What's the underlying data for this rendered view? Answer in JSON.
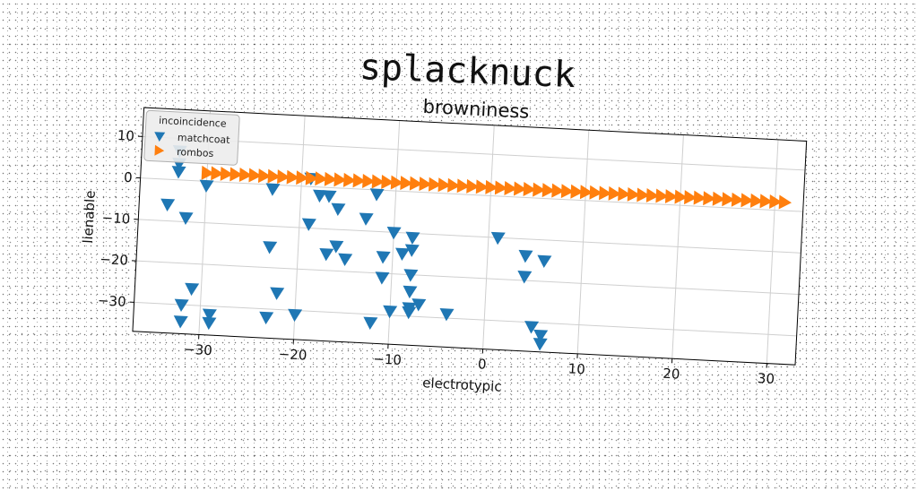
{
  "suptitle": "splacknuck",
  "chart_data": {
    "type": "scatter",
    "title": "browniness",
    "xlabel": "electrotypic",
    "ylabel": "lienable",
    "xlim": [
      -37,
      33
    ],
    "ylim": [
      -37,
      17
    ],
    "xticks": [
      -30,
      -20,
      -10,
      0,
      10,
      20,
      30
    ],
    "yticks": [
      10,
      0,
      -10,
      -20,
      -30
    ],
    "grid": true,
    "legend": {
      "title": "incoincidence",
      "position": "top-left"
    },
    "series": [
      {
        "name": "matchcoat",
        "color": "#1f77b4",
        "marker": "triangle-down",
        "points": [
          [
            -33,
            7
          ],
          [
            -33,
            4
          ],
          [
            -33,
            2
          ],
          [
            -30,
            -1
          ],
          [
            -34,
            -6
          ],
          [
            -32,
            -9
          ],
          [
            -31,
            -26
          ],
          [
            -32,
            -30
          ],
          [
            -32,
            -34
          ],
          [
            -29,
            -32
          ],
          [
            -29,
            -34
          ],
          [
            -23,
            -1
          ],
          [
            -23,
            -15
          ],
          [
            -22,
            -26
          ],
          [
            -23,
            -32
          ],
          [
            -19,
            2
          ],
          [
            -18,
            -2
          ],
          [
            -19,
            -9
          ],
          [
            -20,
            -31
          ],
          [
            -17,
            -2
          ],
          [
            -16,
            -5
          ],
          [
            -16,
            -14
          ],
          [
            -17,
            -16
          ],
          [
            -15,
            -17
          ],
          [
            -12,
            -1
          ],
          [
            -13,
            -7
          ],
          [
            -12,
            -32
          ],
          [
            -10,
            -10
          ],
          [
            -11,
            -16
          ],
          [
            -11,
            -21
          ],
          [
            -10,
            -29
          ],
          [
            -9,
            -15
          ],
          [
            -8,
            -11
          ],
          [
            -8,
            -14
          ],
          [
            -8,
            -20
          ],
          [
            -8,
            -24
          ],
          [
            -8,
            -28
          ],
          [
            -8,
            -29
          ],
          [
            -7,
            -27
          ],
          [
            -4,
            -29
          ],
          [
            1,
            -10
          ],
          [
            4,
            -14
          ],
          [
            4,
            -19
          ],
          [
            5,
            -31
          ],
          [
            6,
            -15
          ],
          [
            6,
            -33
          ],
          [
            6,
            -35
          ]
        ]
      },
      {
        "name": "rombos",
        "color": "#ff7f0e",
        "marker": "triangle-right",
        "x_start": -30,
        "x_end": 31,
        "y_start": 2,
        "y_end": 2,
        "count": 62
      }
    ]
  }
}
